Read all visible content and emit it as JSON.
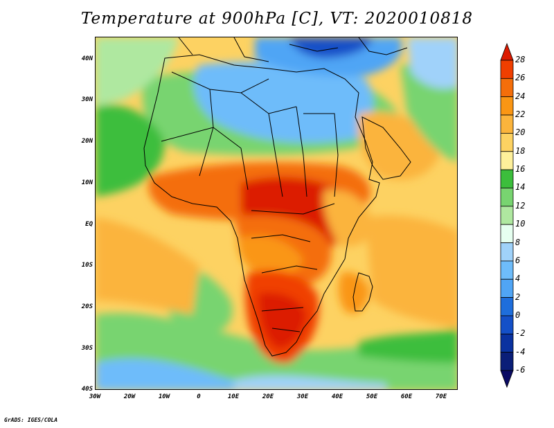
{
  "title": "Temperature at 900hPa [C], VT: 2020010818",
  "credit": "GrADS: IGES/COLA",
  "map": {
    "lon_range": [
      -30,
      75
    ],
    "lat_range": [
      -40,
      45
    ],
    "lat_ticks": [
      "40N",
      "30N",
      "20N",
      "10N",
      "EQ",
      "10S",
      "20S",
      "30S",
      "40S"
    ],
    "lon_ticks": [
      "30W",
      "20W",
      "10W",
      "0",
      "10E",
      "20E",
      "30E",
      "40E",
      "50E",
      "60E",
      "70E"
    ]
  },
  "colorbar": {
    "levels": [
      "28",
      "26",
      "24",
      "22",
      "20",
      "18",
      "16",
      "14",
      "12",
      "10",
      "8",
      "6",
      "4",
      "2",
      "0",
      "-2",
      "-4",
      "-6"
    ],
    "colors": [
      "#dc1a00",
      "#f03f00",
      "#f46e0a",
      "#fa9614",
      "#fbb43c",
      "#fdd262",
      "#fef09b",
      "#3cbe3c",
      "#78d470",
      "#afe8a0",
      "#e6fff0",
      "#a0d2fa",
      "#6ebcfa",
      "#50a5f5",
      "#1e6edc",
      "#1450c8",
      "#0a32a0",
      "#0a1e78",
      "#0a0a64"
    ]
  }
}
